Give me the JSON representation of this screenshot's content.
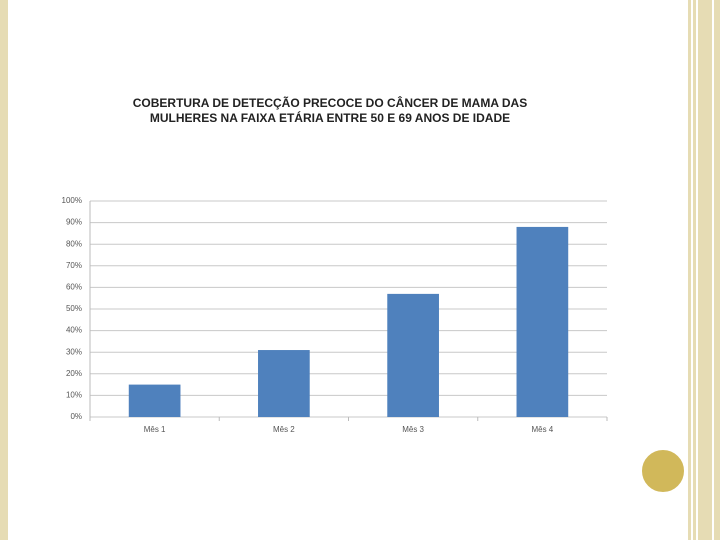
{
  "chart_data": {
    "type": "bar",
    "title": [
      "COBERTURA DE DETECÇÃO PRECOCE DO CÂNCER DE MAMA DAS",
      "MULHERES NA FAIXA ETÁRIA ENTRE 50 E 69 ANOS DE IDADE"
    ],
    "categories": [
      "Mês 1",
      "Mês 2",
      "Mês 3",
      "Mês 4"
    ],
    "values": [
      15,
      31,
      57,
      88
    ],
    "color": "#4f81bd",
    "ylim": [
      0,
      100
    ],
    "yticks": [
      {
        "value": 0,
        "label": "0%"
      },
      {
        "value": 10,
        "label": "10%"
      },
      {
        "value": 20,
        "label": "20%"
      },
      {
        "value": 30,
        "label": "30%"
      },
      {
        "value": 40,
        "label": "40%"
      },
      {
        "value": 50,
        "label": "50%"
      },
      {
        "value": 60,
        "label": "60%"
      },
      {
        "value": 70,
        "label": "70%"
      },
      {
        "value": 80,
        "label": "80%"
      },
      {
        "value": 90,
        "label": "90%"
      },
      {
        "value": 100,
        "label": "100%"
      }
    ],
    "grid": true
  }
}
